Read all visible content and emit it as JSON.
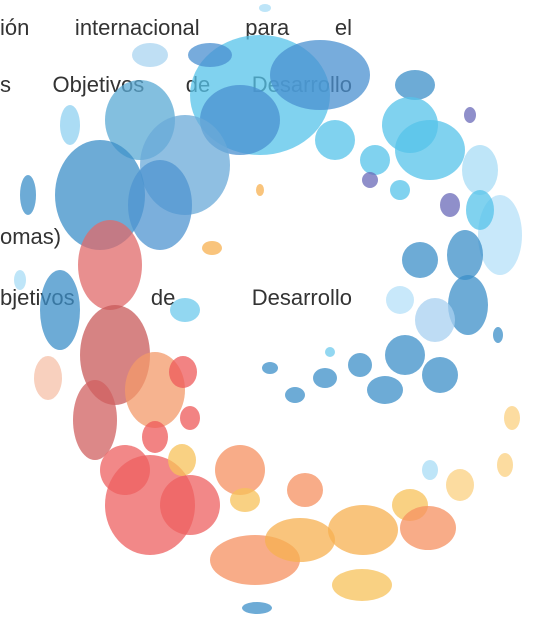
{
  "text_lines": [
    "ión internacional para el",
    "s Objetivos de Desarrollo",
    "omas)",
    "bjetivos de Desarrollo"
  ]
}
